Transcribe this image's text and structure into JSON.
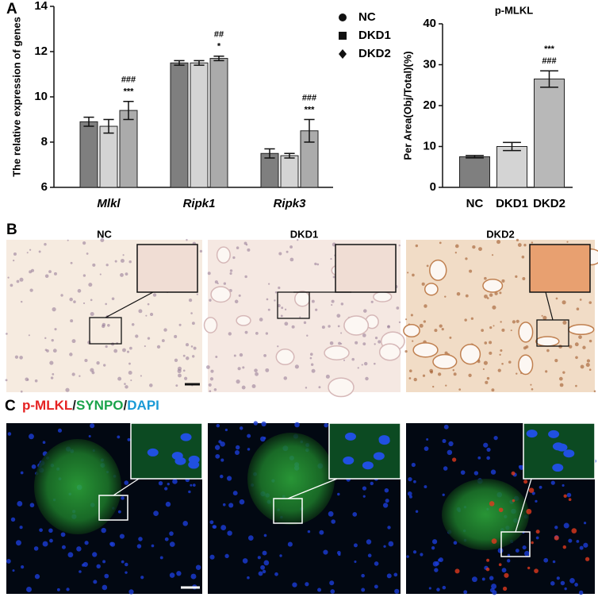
{
  "panel_labels": [
    "A",
    "B",
    "C"
  ],
  "chart_data": [
    {
      "type": "bar",
      "y_label": "The relative expression of genes",
      "categories": [
        "Mlkl",
        "Ripk1",
        "Ripk3"
      ],
      "series": [
        {
          "name": "NC",
          "color": "#7f7f7f",
          "marker": "circle",
          "values": [
            8.9,
            11.5,
            7.5
          ],
          "errors": [
            0.2,
            0.1,
            0.2
          ],
          "annotations": [
            [],
            [],
            []
          ]
        },
        {
          "name": "DKD1",
          "color": "#d4d4d4",
          "marker": "square",
          "values": [
            8.7,
            11.5,
            7.4
          ],
          "errors": [
            0.3,
            0.1,
            0.1
          ],
          "annotations": [
            [],
            [],
            []
          ]
        },
        {
          "name": "DKD2",
          "color": "#ababab",
          "marker": "diamond",
          "values": [
            9.4,
            11.7,
            8.5
          ],
          "errors": [
            0.4,
            0.1,
            0.5
          ],
          "annotations": [
            [
              "###",
              "***"
            ],
            [
              "##",
              "*"
            ],
            [
              "###",
              "***"
            ]
          ]
        }
      ],
      "ylim": [
        6,
        14
      ],
      "yticks": [
        6,
        8,
        10,
        12,
        14
      ],
      "legend": "top-right"
    },
    {
      "type": "bar",
      "title": "p-MLKL",
      "y_label": "Per Area(Obj/Total)(%)",
      "categories": [
        "NC",
        "DKD1",
        "DKD2"
      ],
      "values": [
        7.5,
        10,
        26.5
      ],
      "errors": [
        0.3,
        1,
        2
      ],
      "colors": [
        "#7f7f7f",
        "#d4d4d4",
        "#b8b8b8"
      ],
      "annotations": [
        [],
        [],
        [
          "***",
          "###"
        ]
      ],
      "ylim": [
        0,
        40
      ],
      "yticks": [
        0,
        10,
        20,
        30,
        40
      ]
    }
  ],
  "ihc": {
    "titles": [
      "NC",
      "DKD1",
      "DKD2"
    ]
  },
  "if_legend": {
    "parts": [
      "p-MLKL",
      "/",
      "SYNPO",
      "/",
      "DAPI"
    ]
  }
}
